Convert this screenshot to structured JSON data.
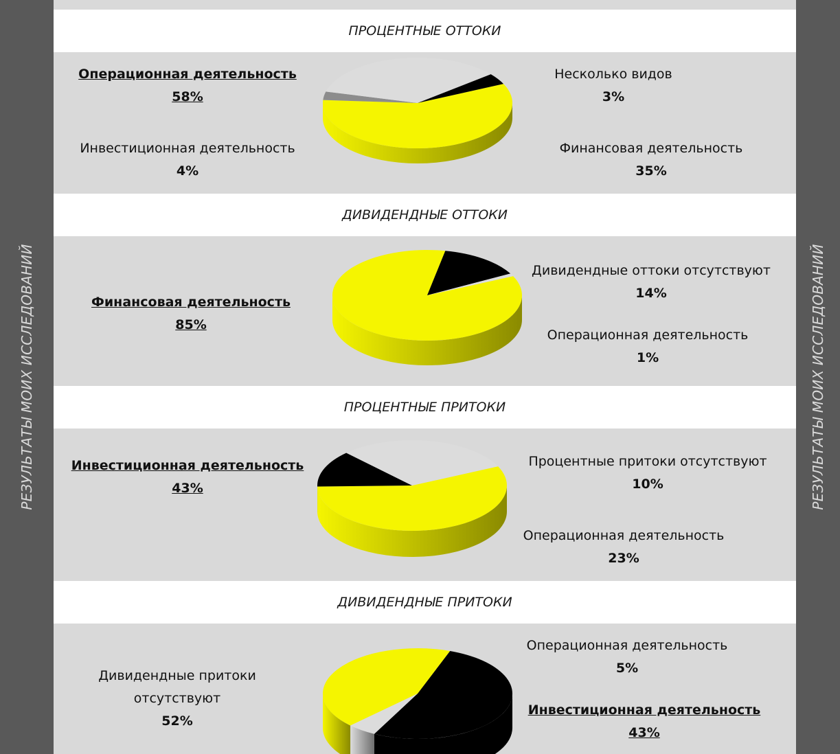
{
  "side_label": "РЕЗУЛЬТАТЫ МОИХ ИССЛЕДОВАНИЙ",
  "colors": {
    "yellow": "#f5f500",
    "black": "#000000",
    "light": "#dcdcdc",
    "gray": "#8c8c8c"
  },
  "chart_data": [
    {
      "type": "pie",
      "title": "ПРОЦЕНТНЫЕ ОТТОКИ",
      "slices": [
        {
          "label": "Операционная деятельность",
          "value": 58,
          "display": "58%",
          "color": "yellow",
          "emphasized": true
        },
        {
          "label": "Несколько видов",
          "value": 3,
          "display": "3%",
          "color": "gray"
        },
        {
          "label": "Финансовая деятельность",
          "value": 35,
          "display": "35%",
          "color": "light"
        },
        {
          "label": "Инвестиционная деятельность",
          "value": 4,
          "display": "4%",
          "color": "black"
        }
      ]
    },
    {
      "type": "pie",
      "title": "ДИВИДЕНДНЫЕ ОТТОКИ",
      "slices": [
        {
          "label": "Финансовая деятельность",
          "value": 85,
          "display": "85%",
          "color": "yellow",
          "emphasized": true
        },
        {
          "label": "Дивидендные оттоки отсутствуют",
          "value": 14,
          "display": "14%",
          "color": "black"
        },
        {
          "label": "Операционная деятельность",
          "value": 1,
          "display": "1%",
          "color": "light"
        }
      ]
    },
    {
      "type": "pie",
      "title": "ПРОЦЕНТНЫЕ ПРИТОКИ",
      "slices": [
        {
          "label": "Инвестиционная деятельность",
          "value": 43,
          "display": "43%",
          "color": "yellow",
          "emphasized": true
        },
        {
          "label": "Процентные притоки отсутствуют",
          "value": 10,
          "display": "10%",
          "color": "black"
        },
        {
          "label": "Операционная деятельность",
          "value": 23,
          "display": "23%",
          "color": "light"
        }
      ]
    },
    {
      "type": "pie",
      "title": "ДИВИДЕНДНЫЕ ПРИТОКИ",
      "slices": [
        {
          "label": "Дивидендные притоки отсутствуют",
          "value": 52,
          "display": "52%",
          "color": "black"
        },
        {
          "label": "Операционная деятельность",
          "value": 5,
          "display": "5%",
          "color": "light"
        },
        {
          "label": "Инвестиционная деятельность",
          "value": 43,
          "display": "43%",
          "color": "yellow",
          "emphasized": true
        }
      ]
    }
  ]
}
